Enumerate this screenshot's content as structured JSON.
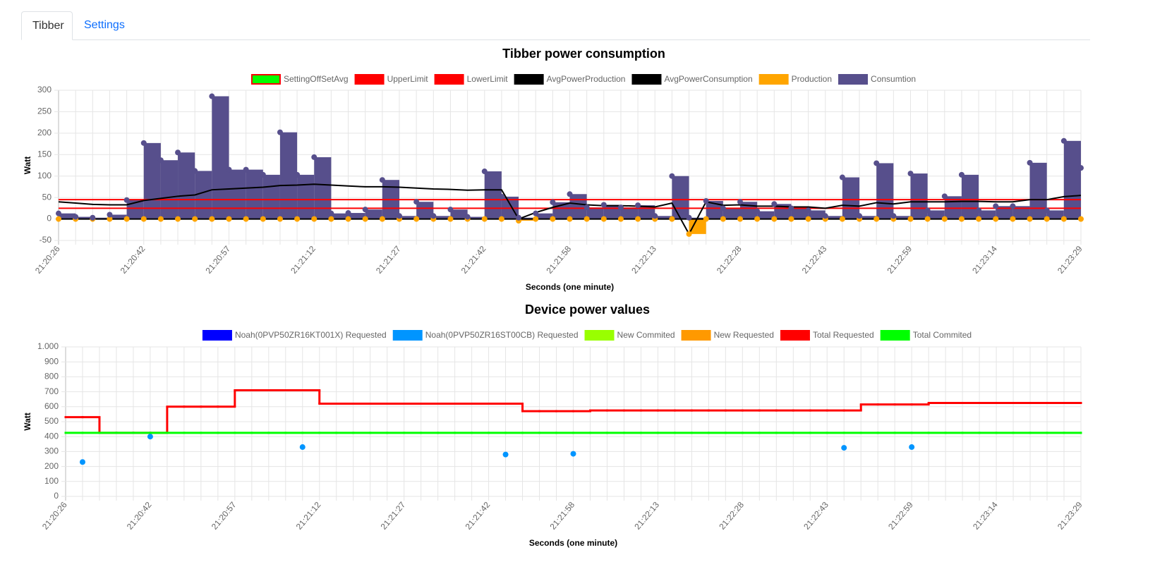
{
  "tabs": [
    "Tibber",
    "Settings"
  ],
  "chart_data": [
    {
      "type": "combo",
      "title": "Tibber power consumption",
      "x_label": "Seconds (one minute)",
      "y_label": "Watt",
      "categories": [
        "21:20:26",
        null,
        null,
        null,
        null,
        "21:20:42",
        null,
        null,
        null,
        null,
        "21:20:57",
        null,
        null,
        null,
        null,
        "21:21:12",
        null,
        null,
        null,
        null,
        "21:21:27",
        null,
        null,
        null,
        null,
        "21:21:42",
        null,
        null,
        null,
        null,
        "21:21:58",
        null,
        null,
        null,
        null,
        "21:22:13",
        null,
        null,
        null,
        null,
        "21:22:28",
        null,
        null,
        null,
        null,
        "21:22:43",
        null,
        null,
        null,
        null,
        "21:22:59",
        null,
        null,
        null,
        null,
        "21:23:14",
        null,
        null,
        null,
        null,
        "21:23:29"
      ],
      "ylim": [
        -50,
        300
      ],
      "yticks": [
        -50,
        0,
        50,
        100,
        150,
        200,
        250,
        300
      ],
      "grid": true,
      "series": [
        {
          "name": "SettingOffSetAvg",
          "type": "line",
          "color": "#00ff00",
          "border_color": "#ff0000"
        },
        {
          "name": "UpperLimit",
          "type": "line",
          "color": "#ff0000",
          "values": [
            45,
            45,
            45,
            45,
            45,
            45,
            45,
            45,
            45,
            45,
            45,
            45,
            45,
            45,
            45,
            45,
            45,
            45,
            45,
            45,
            45,
            45,
            45,
            45,
            45,
            45,
            45,
            45,
            45,
            45,
            45,
            45,
            45,
            45,
            45,
            45,
            45,
            45,
            45,
            45,
            45,
            45,
            45,
            45,
            45,
            45,
            45,
            45,
            45,
            45,
            45,
            45,
            45,
            45,
            45,
            45,
            45,
            45,
            45,
            45,
            45
          ]
        },
        {
          "name": "LowerLimit",
          "type": "line",
          "color": "#ff0000",
          "values": [
            25,
            25,
            25,
            25,
            25,
            25,
            25,
            25,
            25,
            25,
            25,
            25,
            25,
            25,
            25,
            25,
            25,
            25,
            25,
            25,
            25,
            25,
            25,
            25,
            25,
            25,
            25,
            25,
            25,
            25,
            25,
            25,
            25,
            25,
            25,
            25,
            25,
            25,
            25,
            25,
            25,
            25,
            25,
            25,
            25,
            25,
            25,
            25,
            25,
            25,
            25,
            25,
            25,
            25,
            25,
            25,
            25,
            25,
            25,
            25,
            25
          ]
        },
        {
          "name": "AvgPowerProduction",
          "type": "line",
          "color": "#000000",
          "values": [
            0,
            0,
            0,
            0,
            0,
            0,
            0,
            0,
            0,
            0,
            0,
            0,
            0,
            0,
            0,
            0,
            0,
            0,
            0,
            0,
            0,
            0,
            0,
            0,
            0,
            0,
            0,
            0,
            0,
            0,
            0,
            0,
            0,
            0,
            0,
            0,
            0,
            0,
            0,
            0,
            0,
            0,
            0,
            0,
            0,
            0,
            0,
            0,
            0,
            0,
            0,
            0,
            0,
            0,
            0,
            0,
            0,
            0,
            0,
            0,
            0
          ]
        },
        {
          "name": "AvgPowerConsumption",
          "type": "line",
          "color": "#000000",
          "values": [
            40,
            37,
            34,
            33,
            33,
            43,
            48,
            53,
            56,
            68,
            70,
            72,
            74,
            78,
            79,
            81,
            79,
            77,
            75,
            75,
            74,
            72,
            70,
            69,
            67,
            68,
            68,
            0,
            15,
            27,
            37,
            33,
            31,
            31,
            30,
            28,
            37,
            -35,
            40,
            32,
            33,
            30,
            30,
            28,
            28,
            25,
            32,
            30,
            38,
            35,
            40,
            40,
            40,
            41,
            41,
            40,
            40,
            45,
            45,
            52,
            55
          ]
        },
        {
          "name": "Production",
          "type": "bar",
          "points": true,
          "color": "#ffa500",
          "values": [
            0,
            0,
            0,
            0,
            0,
            0,
            0,
            0,
            0,
            0,
            0,
            0,
            0,
            0,
            0,
            0,
            0,
            0,
            0,
            0,
            0,
            0,
            0,
            0,
            0,
            0,
            0,
            -4,
            0,
            0,
            0,
            0,
            0,
            0,
            0,
            0,
            0,
            -35,
            0,
            0,
            0,
            0,
            0,
            0,
            0,
            0,
            0,
            0,
            0,
            0,
            0,
            0,
            0,
            0,
            0,
            0,
            0,
            0,
            0,
            0,
            0
          ]
        },
        {
          "name": "Consumtion",
          "type": "bar",
          "points": true,
          "color": "#574f8c",
          "values": [
            13,
            5,
            3,
            10,
            44,
            177,
            137,
            155,
            112,
            286,
            115,
            115,
            103,
            202,
            103,
            144,
            13,
            14,
            22,
            91,
            7,
            40,
            7,
            22,
            5,
            111,
            52,
            3,
            13,
            39,
            58,
            27,
            33,
            27,
            32,
            7,
            100,
            3,
            42,
            25,
            40,
            18,
            35,
            25,
            20,
            7,
            97,
            7,
            130,
            7,
            106,
            20,
            53,
            103,
            20,
            30,
            30,
            131,
            20,
            182,
            119
          ]
        }
      ]
    },
    {
      "type": "combo",
      "title": "Device power values",
      "x_label": "Seconds (one minute)",
      "y_label": "Watt",
      "categories": [
        "21:20:26",
        null,
        null,
        null,
        null,
        "21:20:42",
        null,
        null,
        null,
        null,
        "21:20:57",
        null,
        null,
        null,
        null,
        "21:21:12",
        null,
        null,
        null,
        null,
        "21:21:27",
        null,
        null,
        null,
        null,
        "21:21:42",
        null,
        null,
        null,
        null,
        "21:21:58",
        null,
        null,
        null,
        null,
        "21:22:13",
        null,
        null,
        null,
        null,
        "21:22:28",
        null,
        null,
        null,
        null,
        "21:22:43",
        null,
        null,
        null,
        null,
        "21:22:59",
        null,
        null,
        null,
        null,
        "21:23:14",
        null,
        null,
        null,
        null,
        "21:23:29"
      ],
      "ylim": [
        0,
        1000
      ],
      "yticks": [
        0,
        100,
        200,
        300,
        400,
        500,
        600,
        700,
        800,
        900,
        {
          "value": 1000,
          "label": "1.000"
        }
      ],
      "grid": true,
      "series": [
        {
          "name": "Noah(0PVP50ZR16KT001X) Requested",
          "type": "scatter",
          "color": "#0000ff"
        },
        {
          "name": "Noah(0PVP50ZR16ST00CB) Requested",
          "type": "scatter",
          "color": "#0095ff",
          "values": [
            null,
            230,
            null,
            null,
            null,
            400,
            null,
            null,
            null,
            null,
            null,
            null,
            null,
            null,
            330,
            null,
            null,
            null,
            null,
            null,
            null,
            null,
            null,
            null,
            null,
            null,
            280,
            null,
            null,
            null,
            285,
            null,
            null,
            null,
            null,
            null,
            null,
            null,
            null,
            null,
            null,
            null,
            null,
            null,
            null,
            null,
            325,
            null,
            null,
            null,
            330,
            null,
            null,
            null,
            null,
            null,
            null,
            null,
            null,
            null,
            null
          ]
        },
        {
          "name": "New Commited",
          "type": "step",
          "color": "#99ff00"
        },
        {
          "name": "New Requested",
          "type": "step",
          "color": "#ff9900"
        },
        {
          "name": "Total Requested",
          "type": "step",
          "color": "#ff0000",
          "values": [
            530,
            530,
            425,
            425,
            425,
            425,
            600,
            600,
            600,
            600,
            710,
            710,
            710,
            710,
            710,
            620,
            620,
            620,
            620,
            620,
            620,
            620,
            620,
            620,
            620,
            620,
            620,
            570,
            570,
            570,
            570,
            575,
            575,
            575,
            575,
            575,
            575,
            575,
            575,
            575,
            575,
            575,
            575,
            575,
            575,
            575,
            575,
            615,
            615,
            615,
            615,
            625,
            625,
            625,
            625,
            625,
            625,
            625,
            625,
            625,
            625
          ]
        },
        {
          "name": "Total Commited",
          "type": "step",
          "color": "#00ff00",
          "values": [
            425,
            425,
            425,
            425,
            425,
            425,
            425,
            425,
            425,
            425,
            425,
            425,
            425,
            425,
            425,
            425,
            425,
            425,
            425,
            425,
            425,
            425,
            425,
            425,
            425,
            425,
            425,
            425,
            425,
            425,
            425,
            425,
            425,
            425,
            425,
            425,
            425,
            425,
            425,
            425,
            425,
            425,
            425,
            425,
            425,
            425,
            425,
            425,
            425,
            425,
            425,
            425,
            425,
            425,
            425,
            425,
            425,
            425,
            425,
            425,
            425
          ]
        }
      ]
    }
  ]
}
